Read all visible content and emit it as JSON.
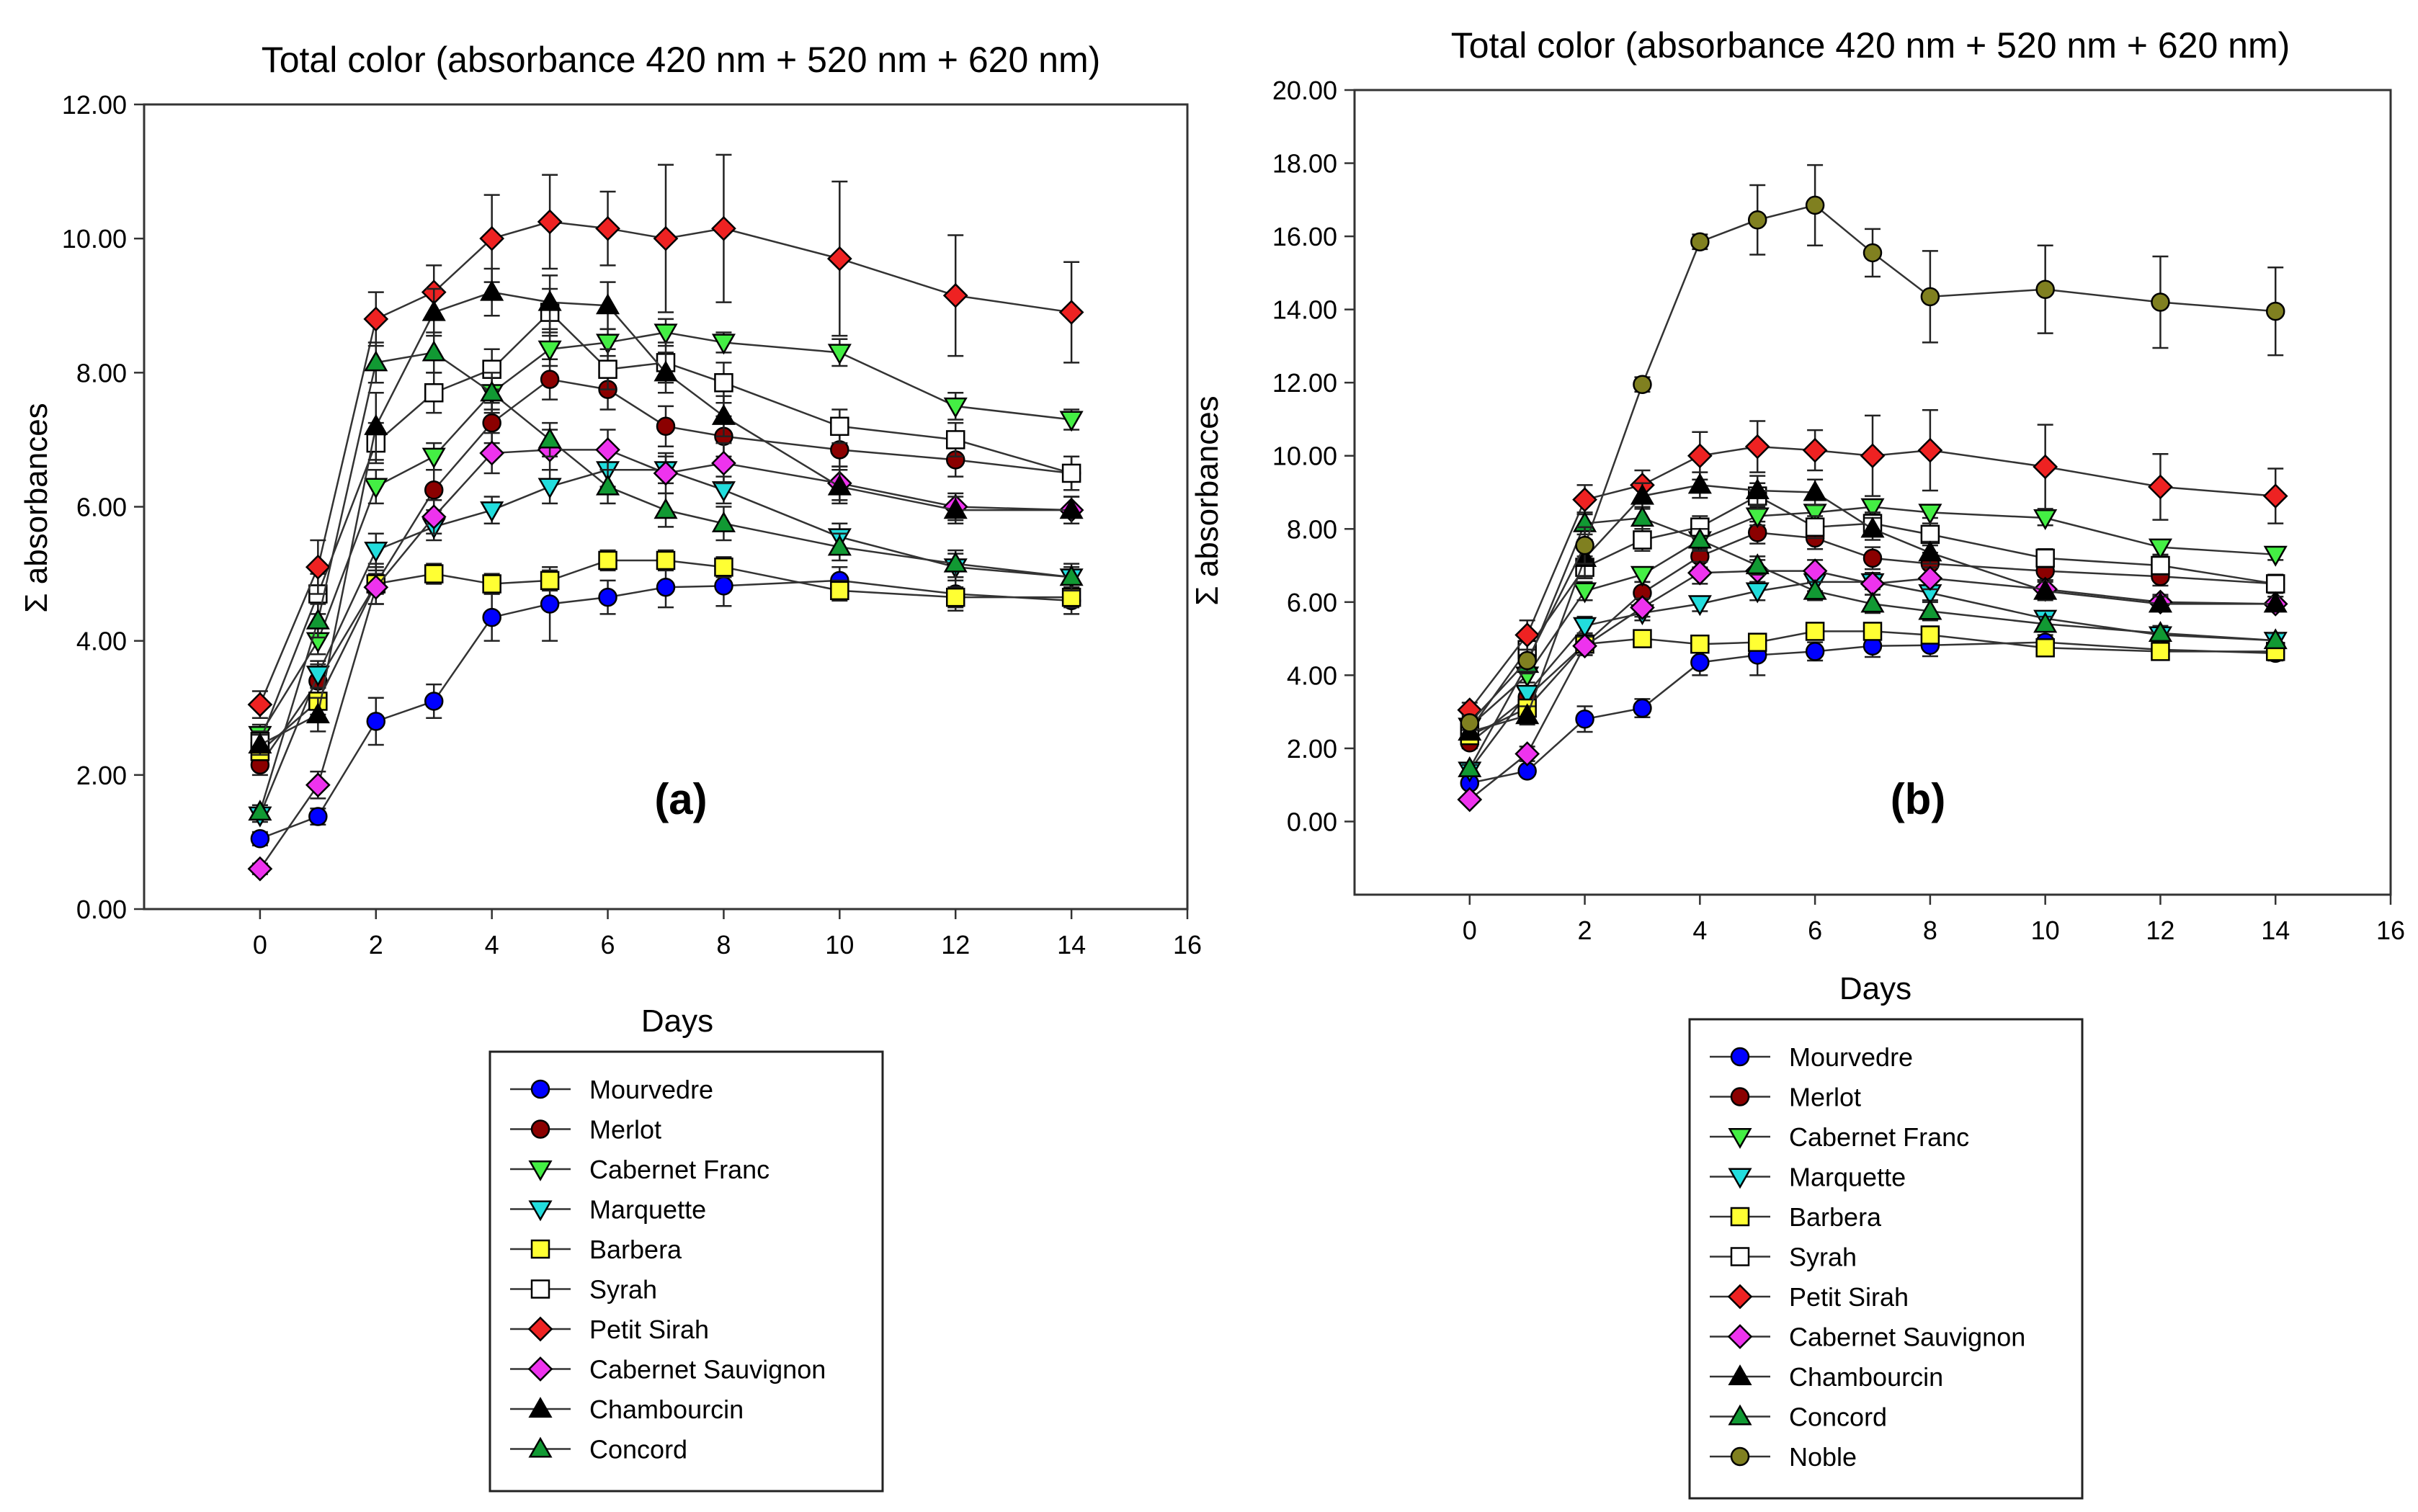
{
  "chart_data": [
    {
      "type": "line",
      "panel_label": "(a)",
      "title": "Total color (absorbance 420 nm + 520 nm + 620 nm)",
      "xlabel": "Days",
      "ylabel": "Σ absorbances",
      "xlim": [
        -2,
        16
      ],
      "ylim": [
        0,
        12
      ],
      "xticks": [
        0,
        2,
        4,
        6,
        8,
        10,
        12,
        14,
        16
      ],
      "yticks": [
        0,
        2,
        4,
        6,
        8,
        10,
        12
      ],
      "ytick_labels": [
        "0.00",
        "2.00",
        "4.00",
        "6.00",
        "8.00",
        "10.00",
        "12.00"
      ],
      "x": [
        0,
        1,
        2,
        3,
        4,
        5,
        6,
        7,
        8,
        10,
        12,
        14
      ],
      "series": [
        {
          "name": "Mourvedre",
          "marker": "circle",
          "color": "#0000ff",
          "values": [
            1.05,
            1.38,
            2.8,
            3.1,
            4.35,
            4.55,
            4.65,
            4.8,
            4.82,
            4.9,
            4.7,
            4.6
          ],
          "errors": [
            0.1,
            0.12,
            0.35,
            0.25,
            0.35,
            0.55,
            0.25,
            0.3,
            0.3,
            0.2,
            0.25,
            0.2
          ]
        },
        {
          "name": "Merlot",
          "marker": "circle",
          "color": "#8b0000",
          "values": [
            2.15,
            3.4,
            4.85,
            6.25,
            7.25,
            7.9,
            7.75,
            7.2,
            7.05,
            6.85,
            6.7,
            6.5
          ],
          "errors": [
            0.15,
            0.25,
            0.3,
            0.3,
            0.3,
            0.3,
            0.3,
            0.3,
            0.3,
            0.25,
            0.25,
            0.25
          ]
        },
        {
          "name": "Cabernet Franc",
          "marker": "triangle-down",
          "color": "#44ee44",
          "values": [
            2.6,
            4.0,
            6.3,
            6.75,
            7.7,
            8.35,
            8.45,
            8.6,
            8.45,
            8.3,
            7.5,
            7.3
          ],
          "errors": [
            0.15,
            0.2,
            0.25,
            0.2,
            0.25,
            0.25,
            0.2,
            0.2,
            0.15,
            0.2,
            0.2,
            0.15
          ]
        },
        {
          "name": "Marquette",
          "marker": "triangle-down",
          "color": "#22dddd",
          "values": [
            1.4,
            3.5,
            5.35,
            5.7,
            5.95,
            6.3,
            6.55,
            6.55,
            6.25,
            5.55,
            5.1,
            4.95
          ],
          "errors": [
            0.1,
            0.2,
            0.25,
            0.2,
            0.2,
            0.25,
            0.25,
            0.2,
            0.2,
            0.2,
            0.2,
            0.15
          ]
        },
        {
          "name": "Barbera",
          "marker": "square",
          "color": "#ffff33",
          "values": [
            2.35,
            3.1,
            4.85,
            5.0,
            4.85,
            4.9,
            5.2,
            5.2,
            5.1,
            4.75,
            4.65,
            4.65
          ],
          "errors": [
            0.1,
            0.2,
            0.15,
            0.15,
            0.15,
            0.15,
            0.15,
            0.15,
            0.15,
            0.15,
            0.15,
            0.15
          ]
        },
        {
          "name": "Syrah",
          "marker": "square",
          "color": "#ffffff",
          "values": [
            2.5,
            4.7,
            6.95,
            7.7,
            8.05,
            8.9,
            8.05,
            8.15,
            7.85,
            7.2,
            7.0,
            6.5
          ],
          "errors": [
            0.15,
            0.3,
            0.3,
            0.3,
            0.3,
            0.35,
            0.3,
            0.3,
            0.3,
            0.25,
            0.25,
            0.25
          ]
        },
        {
          "name": "Petit Sirah",
          "marker": "diamond",
          "color": "#ee2222",
          "values": [
            3.05,
            5.1,
            8.8,
            9.2,
            10.0,
            10.25,
            10.15,
            10.0,
            10.15,
            9.7,
            9.15,
            8.9
          ],
          "errors": [
            0.2,
            0.4,
            0.4,
            0.4,
            0.65,
            0.7,
            0.55,
            1.1,
            1.1,
            1.15,
            0.9,
            0.75
          ]
        },
        {
          "name": "Cabernet Sauvignon",
          "marker": "diamond",
          "color": "#ee33ee",
          "values": [
            0.6,
            1.85,
            4.8,
            5.85,
            6.8,
            6.85,
            6.85,
            6.5,
            6.65,
            6.35,
            6.0,
            5.95
          ],
          "errors": [
            0.08,
            0.2,
            0.25,
            0.25,
            0.3,
            0.3,
            0.3,
            0.3,
            0.3,
            0.25,
            0.2,
            0.2
          ]
        },
        {
          "name": "Chambourcin",
          "marker": "triangle-up",
          "color": "#000000",
          "values": [
            2.45,
            2.9,
            7.2,
            8.9,
            9.2,
            9.05,
            9.0,
            8.0,
            7.35,
            6.3,
            5.95,
            5.95
          ],
          "errors": [
            0.15,
            0.25,
            0.5,
            0.35,
            0.35,
            0.4,
            0.35,
            0.3,
            0.3,
            0.25,
            0.2,
            0.2
          ]
        },
        {
          "name": "Concord",
          "marker": "triangle-up",
          "color": "#119933",
          "values": [
            1.45,
            4.3,
            8.15,
            8.3,
            7.7,
            7.0,
            6.3,
            5.95,
            5.75,
            5.4,
            5.15,
            4.95
          ],
          "errors": [
            0.1,
            0.25,
            0.3,
            0.3,
            0.3,
            0.25,
            0.25,
            0.25,
            0.25,
            0.2,
            0.2,
            0.2
          ]
        }
      ]
    },
    {
      "type": "line",
      "panel_label": "(b)",
      "title": "Total color (absorbance 420 nm + 520 nm + 620 nm)",
      "xlabel": "Days",
      "ylabel": "Σ absorbances",
      "xlim": [
        -2,
        16
      ],
      "ylim": [
        -2,
        20
      ],
      "xticks": [
        0,
        2,
        4,
        6,
        8,
        10,
        12,
        14,
        16
      ],
      "yticks": [
        0,
        2,
        4,
        6,
        8,
        10,
        12,
        14,
        16,
        18,
        20
      ],
      "ytick_labels": [
        "0.00",
        "2.00",
        "4.00",
        "6.00",
        "8.00",
        "10.00",
        "12.00",
        "14.00",
        "16.00",
        "18.00",
        "20.00"
      ],
      "x": [
        0,
        1,
        2,
        3,
        4,
        5,
        6,
        7,
        8,
        10,
        12,
        14
      ],
      "series": [
        {
          "name": "Mourvedre",
          "marker": "circle",
          "color": "#0000ff",
          "values": [
            1.05,
            1.38,
            2.8,
            3.1,
            4.35,
            4.55,
            4.65,
            4.8,
            4.82,
            4.9,
            4.7,
            4.6
          ],
          "errors": [
            0.1,
            0.12,
            0.35,
            0.25,
            0.35,
            0.55,
            0.25,
            0.3,
            0.3,
            0.2,
            0.25,
            0.2
          ]
        },
        {
          "name": "Merlot",
          "marker": "circle",
          "color": "#8b0000",
          "values": [
            2.15,
            3.4,
            4.85,
            6.25,
            7.25,
            7.9,
            7.75,
            7.2,
            7.05,
            6.85,
            6.7,
            6.5
          ],
          "errors": [
            0.15,
            0.25,
            0.3,
            0.3,
            0.3,
            0.3,
            0.3,
            0.3,
            0.3,
            0.25,
            0.25,
            0.25
          ]
        },
        {
          "name": "Cabernet Franc",
          "marker": "triangle-down",
          "color": "#44ee44",
          "values": [
            2.6,
            4.0,
            6.3,
            6.75,
            7.7,
            8.35,
            8.45,
            8.6,
            8.45,
            8.3,
            7.5,
            7.3
          ],
          "errors": [
            0.15,
            0.2,
            0.25,
            0.2,
            0.25,
            0.25,
            0.2,
            0.2,
            0.15,
            0.2,
            0.2,
            0.15
          ]
        },
        {
          "name": "Marquette",
          "marker": "triangle-down",
          "color": "#22dddd",
          "values": [
            1.4,
            3.5,
            5.35,
            5.7,
            5.95,
            6.3,
            6.55,
            6.55,
            6.25,
            5.55,
            5.1,
            4.95
          ],
          "errors": [
            0.1,
            0.2,
            0.25,
            0.2,
            0.2,
            0.25,
            0.25,
            0.2,
            0.2,
            0.2,
            0.2,
            0.15
          ]
        },
        {
          "name": "Barbera",
          "marker": "square",
          "color": "#ffff33",
          "values": [
            2.35,
            3.1,
            4.85,
            5.0,
            4.85,
            4.9,
            5.2,
            5.2,
            5.1,
            4.75,
            4.65,
            4.65
          ],
          "errors": [
            0.1,
            0.2,
            0.15,
            0.15,
            0.15,
            0.15,
            0.15,
            0.15,
            0.15,
            0.15,
            0.15,
            0.15
          ]
        },
        {
          "name": "Syrah",
          "marker": "square",
          "color": "#ffffff",
          "values": [
            2.5,
            4.7,
            6.95,
            7.7,
            8.05,
            8.9,
            8.05,
            8.15,
            7.85,
            7.2,
            7.0,
            6.5
          ],
          "errors": [
            0.15,
            0.3,
            0.3,
            0.3,
            0.3,
            0.35,
            0.3,
            0.3,
            0.3,
            0.25,
            0.25,
            0.25
          ]
        },
        {
          "name": "Petit Sirah",
          "marker": "diamond",
          "color": "#ee2222",
          "values": [
            3.05,
            5.1,
            8.8,
            9.2,
            10.0,
            10.25,
            10.15,
            10.0,
            10.15,
            9.7,
            9.15,
            8.9
          ],
          "errors": [
            0.2,
            0.4,
            0.4,
            0.4,
            0.65,
            0.7,
            0.55,
            1.1,
            1.1,
            1.15,
            0.9,
            0.75
          ]
        },
        {
          "name": "Cabernet Sauvignon",
          "marker": "diamond",
          "color": "#ee33ee",
          "values": [
            0.6,
            1.85,
            4.8,
            5.85,
            6.8,
            6.85,
            6.85,
            6.5,
            6.65,
            6.35,
            6.0,
            5.95
          ],
          "errors": [
            0.08,
            0.2,
            0.25,
            0.25,
            0.3,
            0.3,
            0.3,
            0.3,
            0.3,
            0.25,
            0.2,
            0.2
          ]
        },
        {
          "name": "Chambourcin",
          "marker": "triangle-up",
          "color": "#000000",
          "values": [
            2.45,
            2.9,
            7.2,
            8.9,
            9.2,
            9.05,
            9.0,
            8.0,
            7.35,
            6.3,
            5.95,
            5.95
          ],
          "errors": [
            0.15,
            0.25,
            0.5,
            0.35,
            0.35,
            0.4,
            0.35,
            0.3,
            0.3,
            0.25,
            0.2,
            0.2
          ]
        },
        {
          "name": "Concord",
          "marker": "triangle-up",
          "color": "#119933",
          "values": [
            1.45,
            4.3,
            8.15,
            8.3,
            7.7,
            7.0,
            6.3,
            5.95,
            5.75,
            5.4,
            5.15,
            4.95
          ],
          "errors": [
            0.1,
            0.25,
            0.3,
            0.3,
            0.3,
            0.25,
            0.25,
            0.25,
            0.25,
            0.2,
            0.2,
            0.2
          ]
        },
        {
          "name": "Noble",
          "marker": "circle",
          "color": "#808020",
          "values": [
            2.7,
            4.4,
            7.55,
            11.95,
            15.85,
            16.45,
            16.85,
            15.55,
            14.35,
            14.55,
            14.2,
            13.95
          ],
          "errors": [
            0.2,
            0.3,
            0.5,
            0.2,
            0.2,
            0.95,
            1.1,
            0.65,
            1.25,
            1.2,
            1.25,
            1.2
          ]
        }
      ]
    }
  ]
}
